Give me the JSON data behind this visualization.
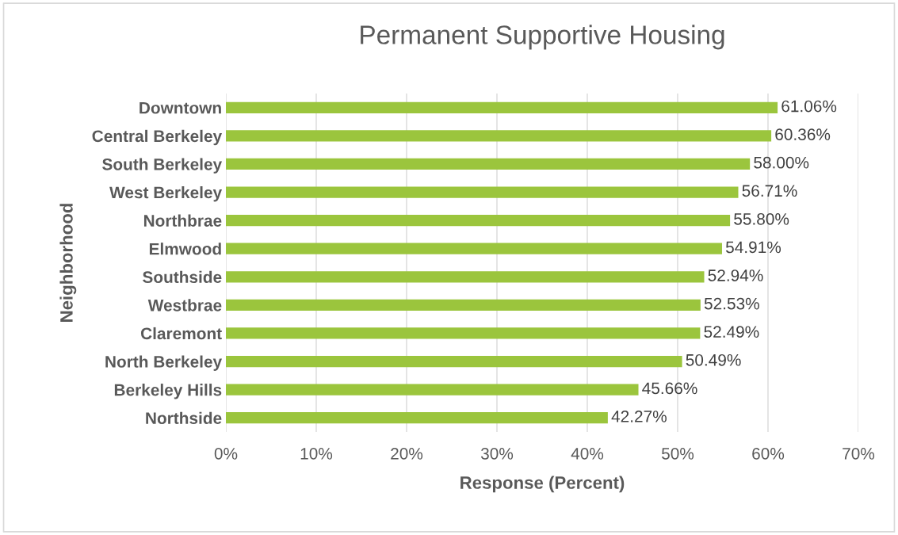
{
  "chart_data": {
    "type": "bar",
    "orientation": "horizontal",
    "title": "Permanent Supportive Housing",
    "xlabel": "Response (Percent)",
    "ylabel": "Neighborhood",
    "categories": [
      "Downtown",
      "Central Berkeley",
      "South Berkeley",
      "West Berkeley",
      "Northbrae",
      "Elmwood",
      "Southside",
      "Westbrae",
      "Claremont",
      "North Berkeley",
      "Berkeley Hills",
      "Northside"
    ],
    "values": [
      61.06,
      60.36,
      58.0,
      56.71,
      55.8,
      54.91,
      52.94,
      52.53,
      52.49,
      50.49,
      45.66,
      42.27
    ],
    "value_labels": [
      "61.06%",
      "60.36%",
      "58.00%",
      "56.71%",
      "55.80%",
      "54.91%",
      "52.94%",
      "52.53%",
      "52.49%",
      "50.49%",
      "45.66%",
      "42.27%"
    ],
    "color": "#9bc53d",
    "xlim": [
      0,
      70
    ],
    "xticks": [
      {
        "value": 0,
        "label": "0%"
      },
      {
        "value": 10,
        "label": "10%"
      },
      {
        "value": 20,
        "label": "20%"
      },
      {
        "value": 30,
        "label": "30%"
      },
      {
        "value": 40,
        "label": "40%"
      },
      {
        "value": 50,
        "label": "50%"
      },
      {
        "value": 60,
        "label": "60%"
      },
      {
        "value": 70,
        "label": "70%"
      }
    ],
    "grid": "x"
  }
}
